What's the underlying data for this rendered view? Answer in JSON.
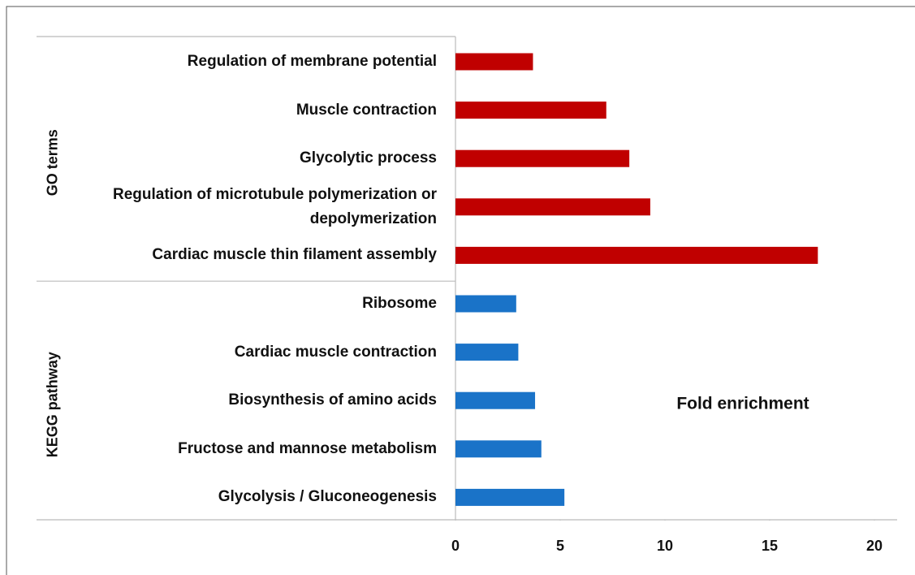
{
  "chart_data": {
    "type": "bar",
    "orientation": "horizontal",
    "xlabel": "Fold enrichment",
    "xlim": [
      0,
      20
    ],
    "xticks": [
      0,
      5,
      10,
      15,
      20
    ],
    "groups": [
      {
        "name": "GO terms",
        "color": "#c00000",
        "categories": [
          "Regulation of membrane potential",
          "Muscle contraction",
          "Glycolytic process",
          "Regulation of microtubule polymerization or depolymerization",
          "Cardiac muscle thin filament assembly"
        ],
        "values": [
          3.7,
          7.2,
          8.3,
          9.3,
          17.3
        ]
      },
      {
        "name": "KEGG pathway",
        "color": "#1a73c8",
        "categories": [
          "Ribosome",
          "Cardiac muscle contraction",
          "Biosynthesis of amino acids",
          "Fructose and mannose metabolism",
          "Glycolysis / Gluconeogenesis"
        ],
        "values": [
          2.9,
          3.0,
          3.8,
          4.1,
          5.2
        ]
      }
    ]
  }
}
